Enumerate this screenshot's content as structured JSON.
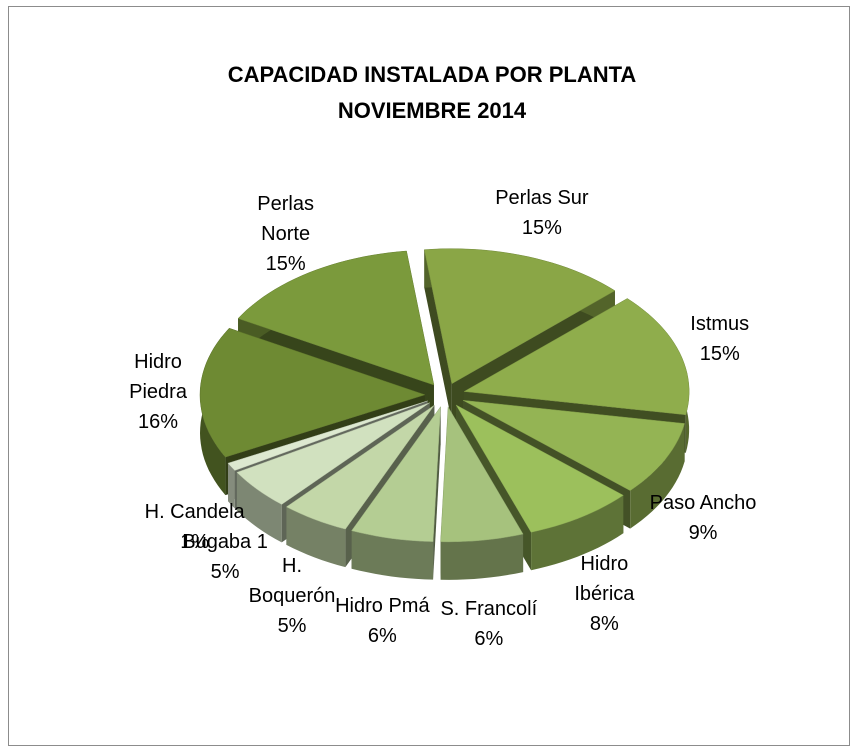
{
  "chart_data": {
    "type": "pie",
    "title": "CAPACIDAD INSTALADA POR PLANTA",
    "subtitle": "NOVIEMBRE 2014",
    "categories": [
      "Perlas Sur",
      "Istmus",
      "Paso Ancho",
      "Hidro Ibérica",
      "S. Francolí",
      "Hidro Pmá",
      "H. Boquerón",
      "Bugaba 1",
      "H. Candela",
      "Hidro Piedra",
      "Perlas Norte"
    ],
    "values": [
      15,
      15,
      9,
      8,
      6,
      6,
      5,
      5,
      1,
      16,
      15
    ],
    "value_labels": [
      "15%",
      "15%",
      "9%",
      "8%",
      "6%",
      "6%",
      "5%",
      "5%",
      "1%",
      "16%",
      "15%"
    ],
    "colors": [
      "#8aa646",
      "#8fad4c",
      "#94b454",
      "#9cc05c",
      "#a6c27d",
      "#b4cd93",
      "#c3d7a8",
      "#d1e1bf",
      "#dde9d0",
      "#6e8a33",
      "#7b9a3c"
    ]
  }
}
